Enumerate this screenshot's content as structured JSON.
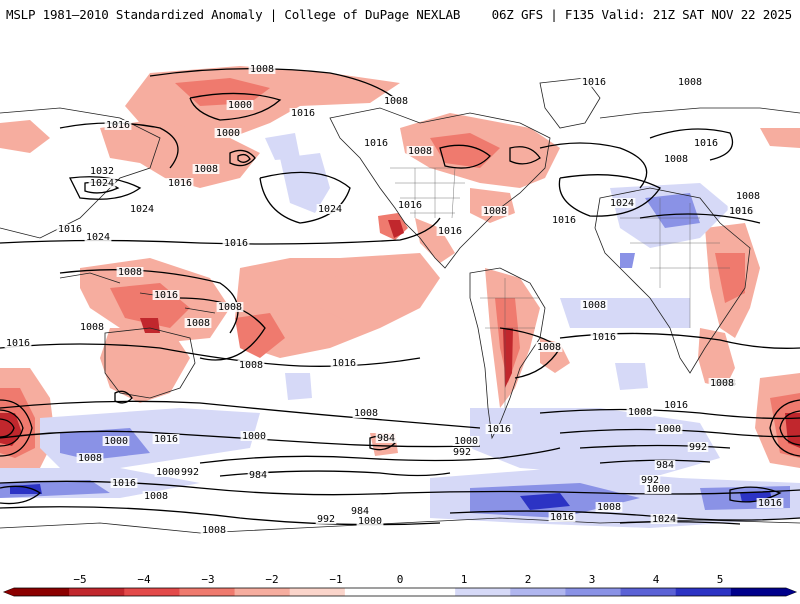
{
  "header": {
    "title_left": "MSLP 1981–2010 Standardized Anomaly | College of DuPage NEXLAB",
    "title_right": "06Z GFS | F135 Valid: 21Z SAT NOV 22 2025"
  },
  "colorbar": {
    "ticks": [
      "−5",
      "−4",
      "−3",
      "−2",
      "−1",
      "0",
      "1",
      "2",
      "3",
      "4",
      "5"
    ],
    "colors": [
      "#8b0000",
      "#c1272d",
      "#e34a4a",
      "#ef7a6e",
      "#f6ad9f",
      "#fbd5cb",
      "#ffffff",
      "#ffffff",
      "#d6d9f7",
      "#b0b6ef",
      "#8a92e6",
      "#5b62d6",
      "#2c33c4",
      "#00008b"
    ]
  },
  "contour_labels": [
    {
      "id": "l1",
      "text": "1008"
    },
    {
      "id": "l2",
      "text": "1000"
    },
    {
      "id": "l3",
      "text": "1016"
    },
    {
      "id": "l4",
      "text": "1000"
    },
    {
      "id": "l5",
      "text": "1008"
    },
    {
      "id": "l6",
      "text": "1016"
    },
    {
      "id": "l7",
      "text": "1032"
    },
    {
      "id": "l8",
      "text": "1024"
    },
    {
      "id": "l9",
      "text": "1016"
    },
    {
      "id": "l10",
      "text": "1024"
    },
    {
      "id": "l11",
      "text": "1016"
    },
    {
      "id": "l12",
      "text": "1024"
    },
    {
      "id": "l13",
      "text": "1016"
    },
    {
      "id": "l14",
      "text": "1016"
    },
    {
      "id": "l15",
      "text": "1008"
    },
    {
      "id": "l16",
      "text": "1016"
    },
    {
      "id": "l17",
      "text": "1008"
    },
    {
      "id": "l18",
      "text": "1008"
    },
    {
      "id": "l19",
      "text": "1008"
    },
    {
      "id": "l20",
      "text": "1024"
    },
    {
      "id": "l21",
      "text": "1016"
    },
    {
      "id": "l22",
      "text": "1008"
    },
    {
      "id": "l23",
      "text": "1016"
    },
    {
      "id": "l24",
      "text": "1016"
    },
    {
      "id": "l25",
      "text": "1008"
    },
    {
      "id": "l26",
      "text": "1016"
    },
    {
      "id": "l27",
      "text": "1008"
    },
    {
      "id": "l28",
      "text": "1024"
    },
    {
      "id": "l29",
      "text": "1016"
    },
    {
      "id": "l30",
      "text": "1008"
    },
    {
      "id": "l31",
      "text": "1016"
    },
    {
      "id": "l32",
      "text": "1016"
    },
    {
      "id": "l33",
      "text": "1008"
    },
    {
      "id": "l34",
      "text": "1008"
    },
    {
      "id": "l35",
      "text": "1008"
    },
    {
      "id": "l36",
      "text": "1008"
    },
    {
      "id": "l37",
      "text": "1016"
    },
    {
      "id": "l38",
      "text": "1016"
    },
    {
      "id": "l39",
      "text": "1008"
    },
    {
      "id": "l40",
      "text": "1016"
    },
    {
      "id": "l41",
      "text": "1008"
    },
    {
      "id": "l42",
      "text": "1000"
    },
    {
      "id": "l43",
      "text": "1008"
    },
    {
      "id": "l44",
      "text": "1016"
    },
    {
      "id": "l45",
      "text": "1000"
    },
    {
      "id": "l46",
      "text": "992"
    },
    {
      "id": "l47",
      "text": "984"
    },
    {
      "id": "l48",
      "text": "1000"
    },
    {
      "id": "l49",
      "text": "992"
    },
    {
      "id": "l50",
      "text": "984"
    },
    {
      "id": "l51",
      "text": "1008"
    },
    {
      "id": "l52",
      "text": "1000"
    },
    {
      "id": "l53",
      "text": "992"
    },
    {
      "id": "l54",
      "text": "984"
    },
    {
      "id": "l55",
      "text": "1000"
    },
    {
      "id": "l56",
      "text": "1008"
    },
    {
      "id": "l57",
      "text": "1016"
    },
    {
      "id": "l58",
      "text": "1008"
    },
    {
      "id": "l59",
      "text": "1016"
    },
    {
      "id": "l60",
      "text": "1000"
    },
    {
      "id": "l61",
      "text": "1008"
    },
    {
      "id": "l62",
      "text": "984"
    },
    {
      "id": "l63",
      "text": "992"
    },
    {
      "id": "l64",
      "text": "992"
    },
    {
      "id": "l65",
      "text": "1016"
    },
    {
      "id": "l66",
      "text": "1008"
    },
    {
      "id": "l67",
      "text": "1024"
    },
    {
      "id": "l68",
      "text": "1000"
    },
    {
      "id": "l69",
      "text": "1016"
    },
    {
      "id": "l70",
      "text": "1016"
    },
    {
      "id": "l71",
      "text": "1016"
    },
    {
      "id": "l72",
      "text": "1008"
    }
  ]
}
